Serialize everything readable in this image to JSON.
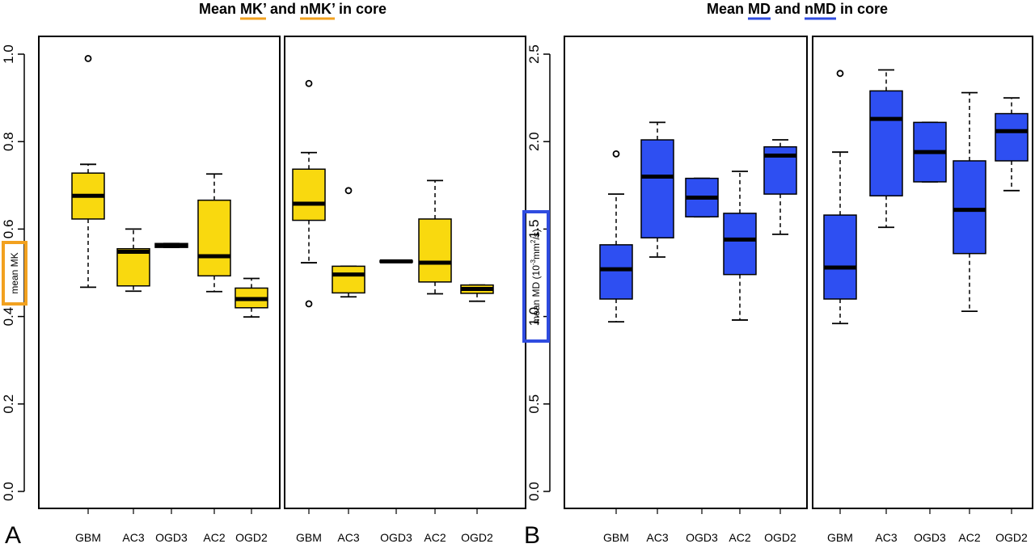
{
  "panels": [
    {
      "letter": "A",
      "title_parts": [
        {
          "text": "Mean ",
          "underline": false
        },
        {
          "text": "MK’",
          "underline": true
        },
        {
          "text": " and ",
          "underline": false
        },
        {
          "text": "nMK’",
          "underline": true
        },
        {
          "text": " in core",
          "underline": false
        }
      ],
      "accent": "#f2a11f"
    },
    {
      "letter": "B",
      "title_parts": [
        {
          "text": "Mean ",
          "underline": false
        },
        {
          "text": "MD",
          "underline": true
        },
        {
          "text": " and ",
          "underline": false
        },
        {
          "text": "nMD",
          "underline": true
        },
        {
          "text": " in core",
          "underline": false
        }
      ],
      "accent": "#2f4ce0"
    }
  ],
  "chart_data": [
    {
      "type": "boxplot",
      "panel": "A",
      "ylabel": "mean MK",
      "ylim": [
        0,
        1.0
      ],
      "yticks": [
        "0.0",
        "0.2",
        "0.4",
        "0.6",
        "0.8",
        "1.0"
      ],
      "fill": "#f9d90f",
      "facets": [
        {
          "categories": [
            "GBM",
            "AC3",
            "OGD3",
            "AC2",
            "OGD2"
          ],
          "boxes": [
            {
              "whisker_low": 0.467,
              "q1": 0.623,
              "median": 0.676,
              "q3": 0.728,
              "whisker_high": 0.748,
              "outliers": [
                0.99
              ]
            },
            {
              "whisker_low": 0.458,
              "q1": 0.47,
              "median": 0.548,
              "q3": 0.555,
              "whisker_high": 0.6,
              "outliers": []
            },
            {
              "whisker_low": 0.558,
              "q1": 0.558,
              "median": 0.563,
              "q3": 0.567,
              "whisker_high": 0.567,
              "outliers": []
            },
            {
              "whisker_low": 0.457,
              "q1": 0.493,
              "median": 0.538,
              "q3": 0.666,
              "whisker_high": 0.726,
              "outliers": []
            },
            {
              "whisker_low": 0.399,
              "q1": 0.42,
              "median": 0.44,
              "q3": 0.465,
              "whisker_high": 0.487,
              "outliers": []
            }
          ]
        },
        {
          "categories": [
            "GBM",
            "AC3",
            "OGD3",
            "AC2",
            "OGD2"
          ],
          "boxes": [
            {
              "whisker_low": 0.523,
              "q1": 0.62,
              "median": 0.658,
              "q3": 0.737,
              "whisker_high": 0.775,
              "outliers": [
                0.933,
                0.429
              ]
            },
            {
              "whisker_low": 0.445,
              "q1": 0.454,
              "median": 0.496,
              "q3": 0.515,
              "whisker_high": 0.515,
              "outliers": [
                0.688
              ]
            },
            {
              "whisker_low": 0.524,
              "q1": 0.524,
              "median": 0.526,
              "q3": 0.528,
              "whisker_high": 0.528,
              "outliers": []
            },
            {
              "whisker_low": 0.452,
              "q1": 0.479,
              "median": 0.523,
              "q3": 0.623,
              "whisker_high": 0.711,
              "outliers": []
            },
            {
              "whisker_low": 0.435,
              "q1": 0.453,
              "median": 0.463,
              "q3": 0.472,
              "whisker_high": 0.472,
              "outliers": []
            }
          ]
        }
      ]
    },
    {
      "type": "boxplot",
      "panel": "B",
      "ylabel_main": "mean MD (10",
      "ylabel_sup1": "-3",
      "ylabel_mid": "mm",
      "ylabel_sup2": "2",
      "ylabel_end": "/s)",
      "ylim": [
        0,
        2.5
      ],
      "yticks": [
        "0.0",
        "0.5",
        "1.0",
        "1.5",
        "2.0",
        "2.5"
      ],
      "fill": "#2e4ff2",
      "facets": [
        {
          "categories": [
            "GBM",
            "AC3",
            "OGD3",
            "AC2",
            "OGD2"
          ],
          "boxes": [
            {
              "whisker_low": 0.97,
              "q1": 1.1,
              "median": 1.27,
              "q3": 1.41,
              "whisker_high": 1.7,
              "outliers": [
                1.93
              ]
            },
            {
              "whisker_low": 1.34,
              "q1": 1.45,
              "median": 1.8,
              "q3": 2.01,
              "whisker_high": 2.11,
              "outliers": []
            },
            {
              "whisker_low": 1.57,
              "q1": 1.57,
              "median": 1.68,
              "q3": 1.79,
              "whisker_high": 1.79,
              "outliers": []
            },
            {
              "whisker_low": 0.98,
              "q1": 1.24,
              "median": 1.44,
              "q3": 1.59,
              "whisker_high": 1.83,
              "outliers": []
            },
            {
              "whisker_low": 1.47,
              "q1": 1.7,
              "median": 1.92,
              "q3": 1.97,
              "whisker_high": 2.01,
              "outliers": []
            }
          ]
        },
        {
          "categories": [
            "GBM",
            "AC3",
            "OGD3",
            "AC2",
            "OGD2"
          ],
          "boxes": [
            {
              "whisker_low": 0.96,
              "q1": 1.1,
              "median": 1.28,
              "q3": 1.58,
              "whisker_high": 1.94,
              "outliers": [
                2.39
              ]
            },
            {
              "whisker_low": 1.51,
              "q1": 1.69,
              "median": 2.13,
              "q3": 2.29,
              "whisker_high": 2.41,
              "outliers": []
            },
            {
              "whisker_low": 1.77,
              "q1": 1.77,
              "median": 1.94,
              "q3": 2.11,
              "whisker_high": 2.11,
              "outliers": []
            },
            {
              "whisker_low": 1.03,
              "q1": 1.36,
              "median": 1.61,
              "q3": 1.89,
              "whisker_high": 2.28,
              "outliers": []
            },
            {
              "whisker_low": 1.72,
              "q1": 1.89,
              "median": 2.06,
              "q3": 2.16,
              "whisker_high": 2.25,
              "outliers": []
            }
          ]
        }
      ]
    }
  ]
}
